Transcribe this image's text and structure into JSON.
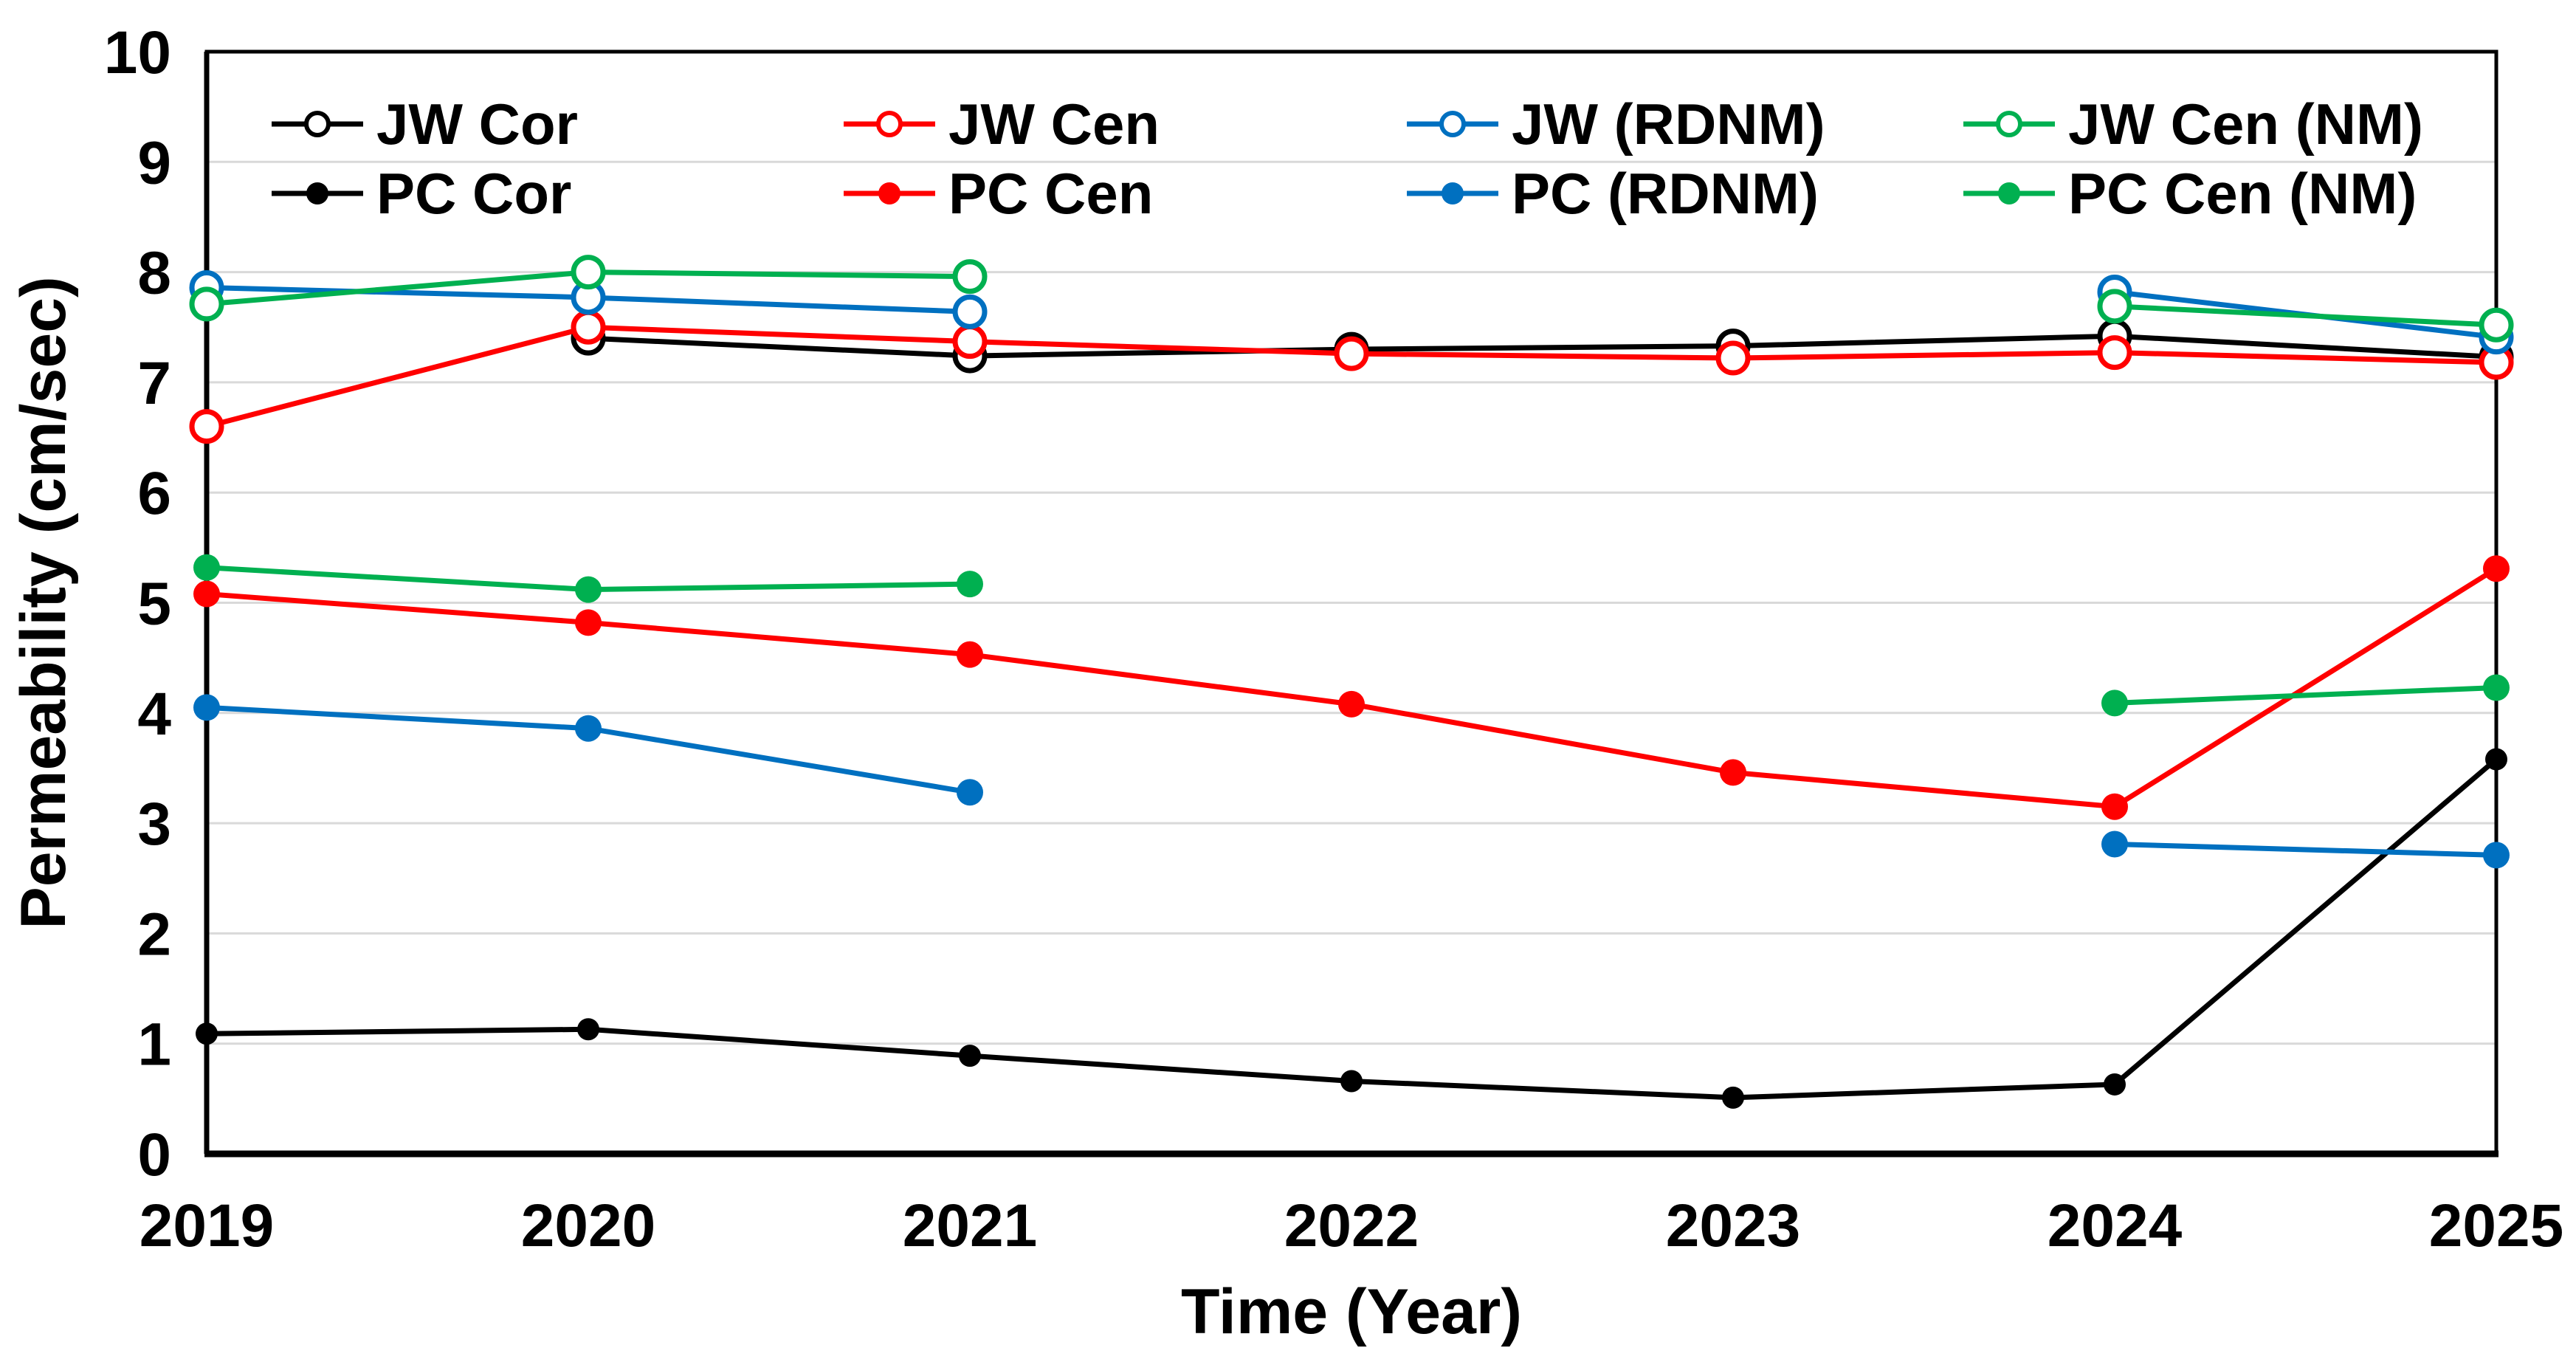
{
  "chart_data": {
    "type": "line",
    "title": "",
    "xlabel": "Time (Year)",
    "ylabel": "Permeability (cm/sec)",
    "x": [
      2019,
      2020,
      2021,
      2022,
      2023,
      2024,
      2025
    ],
    "xtick_labels": [
      "2019",
      "2020",
      "2021",
      "2022",
      "2023",
      "2024",
      "2025"
    ],
    "ylim": [
      0,
      10
    ],
    "ytick_labels": [
      "0",
      "1",
      "2",
      "3",
      "4",
      "5",
      "6",
      "7",
      "8",
      "9",
      "10"
    ],
    "grid": "horizontal-only",
    "gridline_color": "#d9d9d9",
    "axis_color": "#000000",
    "background_color": "#ffffff",
    "legend_position": "top-inside, 4 columns x 2 rows, no frame",
    "series": [
      {
        "name": "JW Cor",
        "color": "#000000",
        "marker": "open",
        "values": [
          null,
          7.4,
          7.24,
          7.3,
          7.33,
          7.42,
          7.23
        ]
      },
      {
        "name": "JW Cen",
        "color": "#ff0000",
        "marker": "open",
        "values": [
          6.6,
          7.5,
          7.37,
          7.26,
          7.22,
          7.27,
          7.18
        ]
      },
      {
        "name": "JW (RDNM)",
        "color": "#0070c0",
        "marker": "open",
        "values": [
          7.86,
          7.77,
          7.64,
          null,
          null,
          7.82,
          7.41
        ]
      },
      {
        "name": "JW Cen (NM)",
        "color": "#00b050",
        "marker": "open",
        "values": [
          7.71,
          8.0,
          7.96,
          null,
          null,
          7.69,
          7.52
        ]
      },
      {
        "name": "PC Cor",
        "color": "#000000",
        "marker": "filled",
        "values": [
          1.09,
          1.13,
          0.89,
          0.66,
          0.51,
          0.63,
          3.58
        ]
      },
      {
        "name": "PC Cen",
        "color": "#ff0000",
        "marker": "filled",
        "values": [
          5.08,
          4.82,
          4.53,
          4.08,
          3.46,
          3.15,
          5.31
        ]
      },
      {
        "name": "PC (RDNM)",
        "color": "#0070c0",
        "marker": "filled",
        "values": [
          4.05,
          3.86,
          3.28,
          null,
          null,
          2.81,
          2.71
        ]
      },
      {
        "name": "PC Cen (NM)",
        "color": "#00b050",
        "marker": "filled",
        "values": [
          5.32,
          5.12,
          5.17,
          null,
          null,
          4.09,
          4.23
        ]
      }
    ]
  }
}
